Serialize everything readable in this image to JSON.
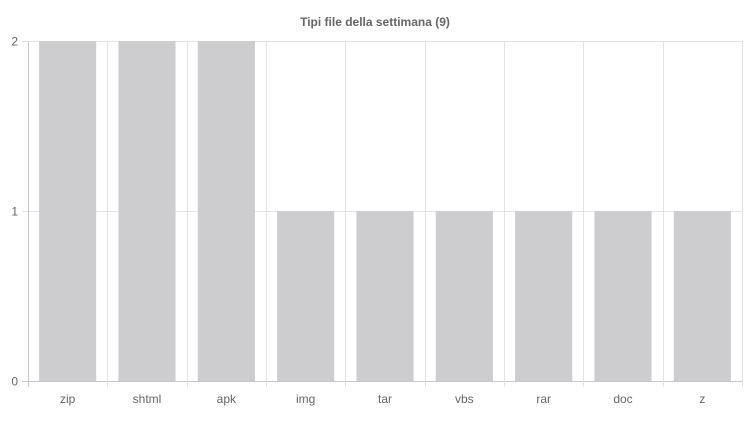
{
  "chart_data": {
    "type": "bar",
    "title": "Tipi file della settimana (9)",
    "categories": [
      "zip",
      "shtml",
      "apk",
      "img",
      "tar",
      "vbs",
      "rar",
      "doc",
      "z"
    ],
    "values": [
      2,
      2,
      2,
      1,
      1,
      1,
      1,
      1,
      1
    ],
    "ylim": [
      0,
      2
    ],
    "yticks": [
      0,
      1,
      2
    ],
    "grid": true,
    "bar_color": "#cdcdcf",
    "grid_color": "#e4e4e4",
    "text_color": "#666666"
  }
}
